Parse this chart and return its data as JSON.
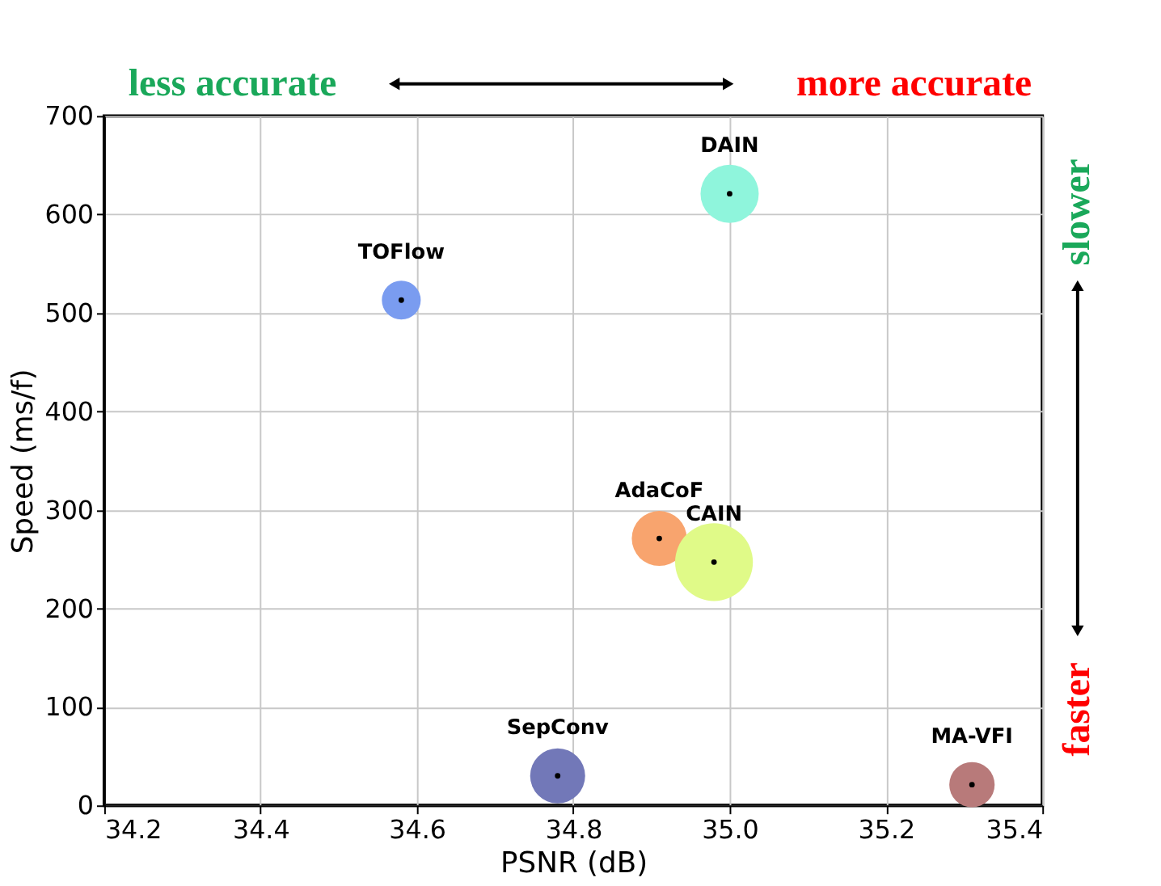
{
  "chart_data": {
    "type": "bubble",
    "xlabel": "PSNR (dB)",
    "ylabel": "Speed (ms/f)",
    "xlim": [
      34.2,
      35.4
    ],
    "xticks": [
      34.2,
      34.4,
      34.6,
      34.8,
      {
        "value": 35,
        "label": "35.0"
      },
      35.2,
      35.4
    ],
    "ylim": [
      0,
      700
    ],
    "yticks": [
      0,
      100,
      200,
      300,
      400,
      500,
      600,
      700
    ],
    "grid": true,
    "legend": false,
    "series": [
      {
        "name": "DAIN",
        "color": "#8ff5dc",
        "x": [
          35.0
        ],
        "values": [
          621
        ],
        "sizes": [
          0.56
        ]
      },
      {
        "name": "TOFlow",
        "color": "#7a9cf0",
        "x": [
          34.58
        ],
        "values": [
          513
        ],
        "sizes": [
          0.25
        ]
      },
      {
        "name": "AdaCoF",
        "color": "#f8a46e",
        "x": [
          34.91
        ],
        "values": [
          271
        ],
        "sizes": [
          0.5
        ]
      },
      {
        "name": "CAIN",
        "color": "#e0fa88",
        "x": [
          34.98
        ],
        "values": [
          247
        ],
        "sizes": [
          1
        ]
      },
      {
        "name": "SepConv",
        "color": "#7278b8",
        "x": [
          34.78
        ],
        "values": [
          30
        ],
        "sizes": [
          0.5
        ]
      },
      {
        "name": "MA-VFI",
        "color": "#b87a7a",
        "x": [
          35.31
        ],
        "values": [
          21
        ],
        "sizes": [
          0.34
        ]
      }
    ],
    "annotations": [
      "less accurate",
      "more accurate",
      "slower",
      "faster"
    ]
  }
}
